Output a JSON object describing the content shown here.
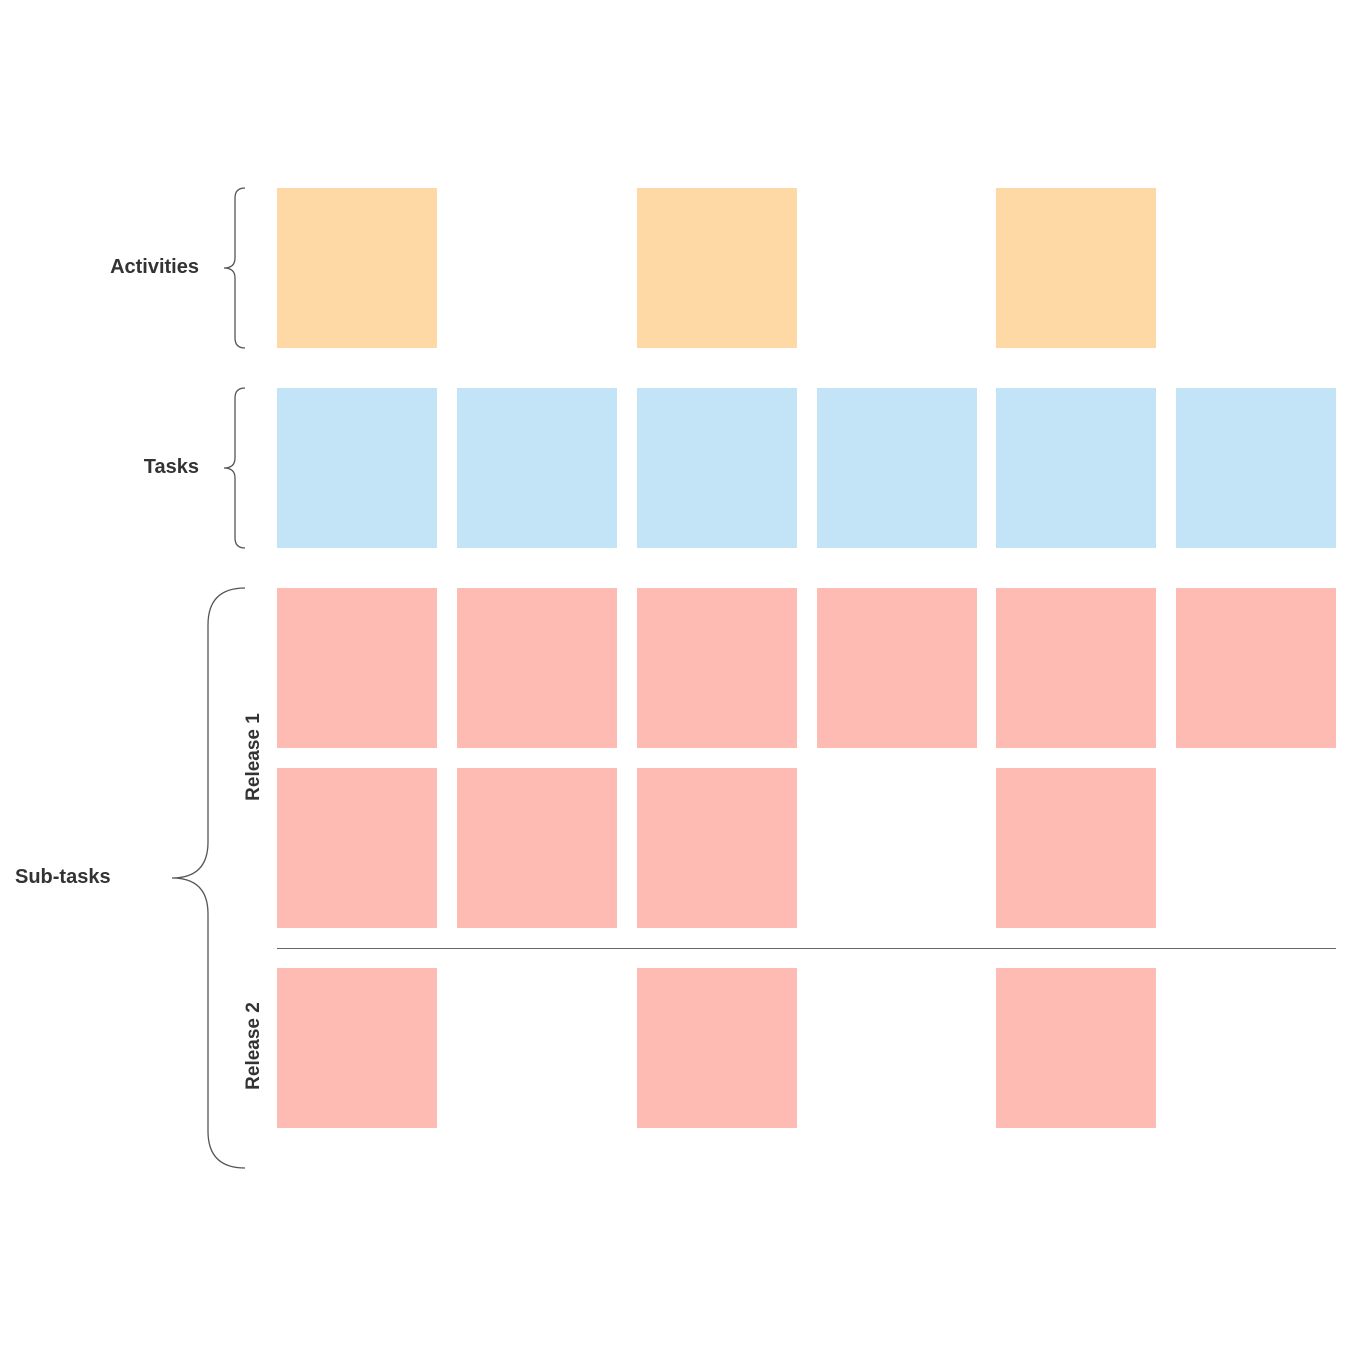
{
  "labels": {
    "activities": "Activities",
    "tasks": "Tasks",
    "subtasks": "Sub-tasks",
    "release1": "Release 1",
    "release2": "Release 2"
  },
  "colors": {
    "activity": "#FED9A6",
    "task": "#C2E4F6",
    "subtask": "#FDBBB3",
    "text": "#333333",
    "line": "#666666"
  },
  "rows": [
    {
      "name": "activities-row",
      "type": "activity",
      "cells": [
        true,
        false,
        true,
        false,
        true,
        false
      ]
    },
    {
      "name": "tasks-row",
      "type": "task",
      "cells": [
        true,
        true,
        true,
        true,
        true,
        true
      ]
    },
    {
      "name": "release-1-row-1",
      "type": "subtask",
      "cells": [
        true,
        true,
        true,
        true,
        true,
        true
      ]
    },
    {
      "name": "release-1-row-2",
      "type": "subtask",
      "cells": [
        true,
        true,
        true,
        false,
        true,
        false
      ]
    },
    {
      "name": "release-2-row-1",
      "type": "subtask",
      "cells": [
        true,
        false,
        true,
        false,
        true,
        false
      ]
    }
  ]
}
